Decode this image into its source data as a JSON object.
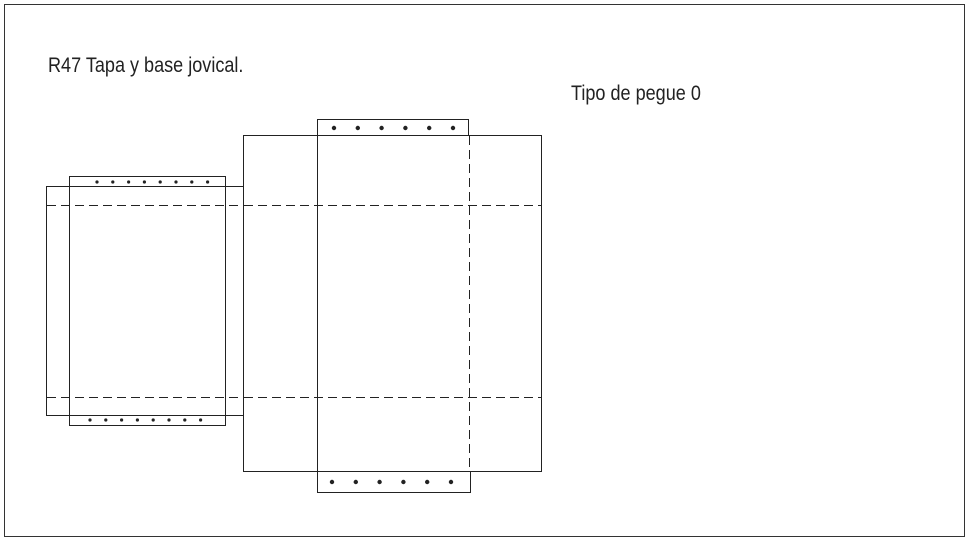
{
  "diagram": {
    "title": "R47 Tapa y base jovical.",
    "subtitle": "Tipo de pegue 0"
  }
}
